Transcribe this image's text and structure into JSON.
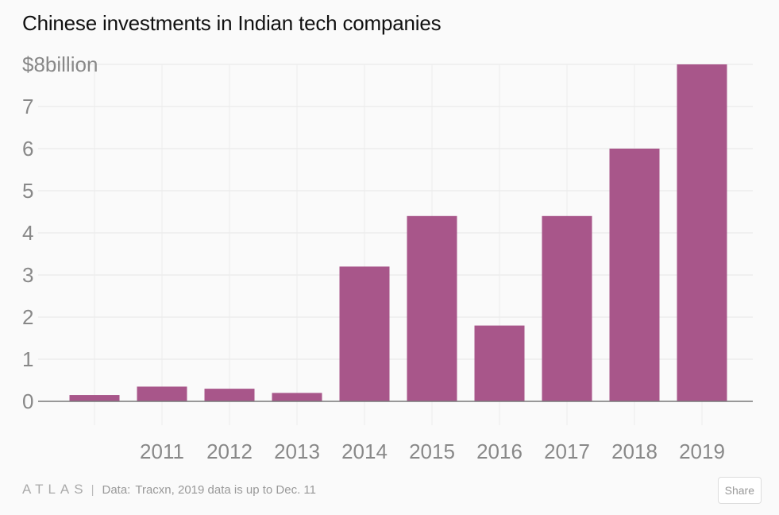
{
  "title": "Chinese investments in Indian tech companies",
  "chart_data": {
    "type": "bar",
    "title": "Chinese investments in Indian tech companies",
    "categories": [
      "",
      "2011",
      "2012",
      "2013",
      "2014",
      "2015",
      "2016",
      "2017",
      "2018",
      "2019"
    ],
    "values": [
      0.15,
      0.35,
      0.3,
      0.2,
      3.2,
      4.4,
      1.8,
      4.4,
      6.0,
      8.0
    ],
    "ylim": [
      0,
      8
    ],
    "yticks": [
      "0",
      "1",
      "2",
      "3",
      "4",
      "5",
      "6",
      "7",
      "$8billion"
    ],
    "xlabel": "",
    "ylabel": "",
    "grid": true,
    "bar_color": "#a8568a"
  },
  "footer": {
    "brand": "ATLAS",
    "separator": "|",
    "source_label": "Data:",
    "source_text": "Tracxn, 2019 data is up to Dec. 11"
  },
  "share_label": "Share"
}
